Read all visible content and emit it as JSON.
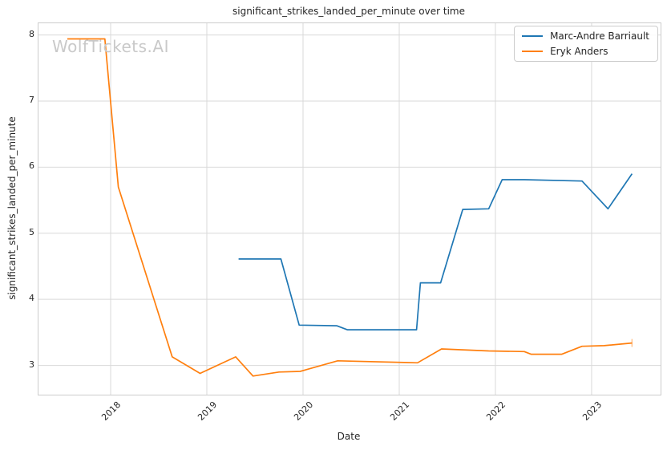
{
  "title": "significant_strikes_landed_per_minute over time",
  "watermark": "WolfTickets.AI",
  "colors": {
    "background": "#ffffff",
    "spine": "#cccccc",
    "grid": "#d9d9d9",
    "text": "#262626",
    "watermark": "#c9c9c9",
    "series_blue": "#1f77b4",
    "series_orange": "#ff7f0e"
  },
  "chart_data": {
    "type": "line",
    "title": "significant_strikes_landed_per_minute over time",
    "xlabel": "Date",
    "ylabel": "significant_strikes_landed_per_minute",
    "x_unit": "decimal_year",
    "xlim": [
      2017.25,
      2023.717
    ],
    "ylim": [
      2.558,
      8.177
    ],
    "x_ticks": [
      2018,
      2019,
      2020,
      2021,
      2022,
      2023
    ],
    "y_ticks": [
      3,
      4,
      5,
      6,
      7,
      8
    ],
    "grid": true,
    "legend_position": "upper right",
    "series": [
      {
        "name": "Marc-Andre Barriault",
        "color": "#1f77b4",
        "points": [
          [
            2019.33,
            4.61
          ],
          [
            2019.77,
            4.61
          ],
          [
            2019.96,
            3.61
          ],
          [
            2020.35,
            3.6
          ],
          [
            2020.46,
            3.54
          ],
          [
            2021.18,
            3.54
          ],
          [
            2021.22,
            4.25
          ],
          [
            2021.43,
            4.25
          ],
          [
            2021.66,
            5.36
          ],
          [
            2021.93,
            5.37
          ],
          [
            2022.07,
            5.81
          ],
          [
            2022.3,
            5.81
          ],
          [
            2022.9,
            5.79
          ],
          [
            2023.17,
            5.37
          ],
          [
            2023.42,
            5.9
          ]
        ]
      },
      {
        "name": "Eryk Anders",
        "color": "#ff7f0e",
        "points": [
          [
            2017.55,
            7.94
          ],
          [
            2017.94,
            7.94
          ],
          [
            2018.08,
            5.7
          ],
          [
            2018.64,
            3.13
          ],
          [
            2018.93,
            2.88
          ],
          [
            2019.3,
            3.13
          ],
          [
            2019.48,
            2.84
          ],
          [
            2019.75,
            2.9
          ],
          [
            2019.97,
            2.91
          ],
          [
            2020.36,
            3.07
          ],
          [
            2021.19,
            3.04
          ],
          [
            2021.44,
            3.25
          ],
          [
            2021.93,
            3.22
          ],
          [
            2022.3,
            3.21
          ],
          [
            2022.37,
            3.17
          ],
          [
            2022.69,
            3.17
          ],
          [
            2022.9,
            3.29
          ],
          [
            2023.13,
            3.3
          ],
          [
            2023.42,
            3.34
          ]
        ],
        "end_error_bar": {
          "x": 2023.42,
          "y_low": 3.28,
          "y_high": 3.4
        }
      }
    ]
  }
}
